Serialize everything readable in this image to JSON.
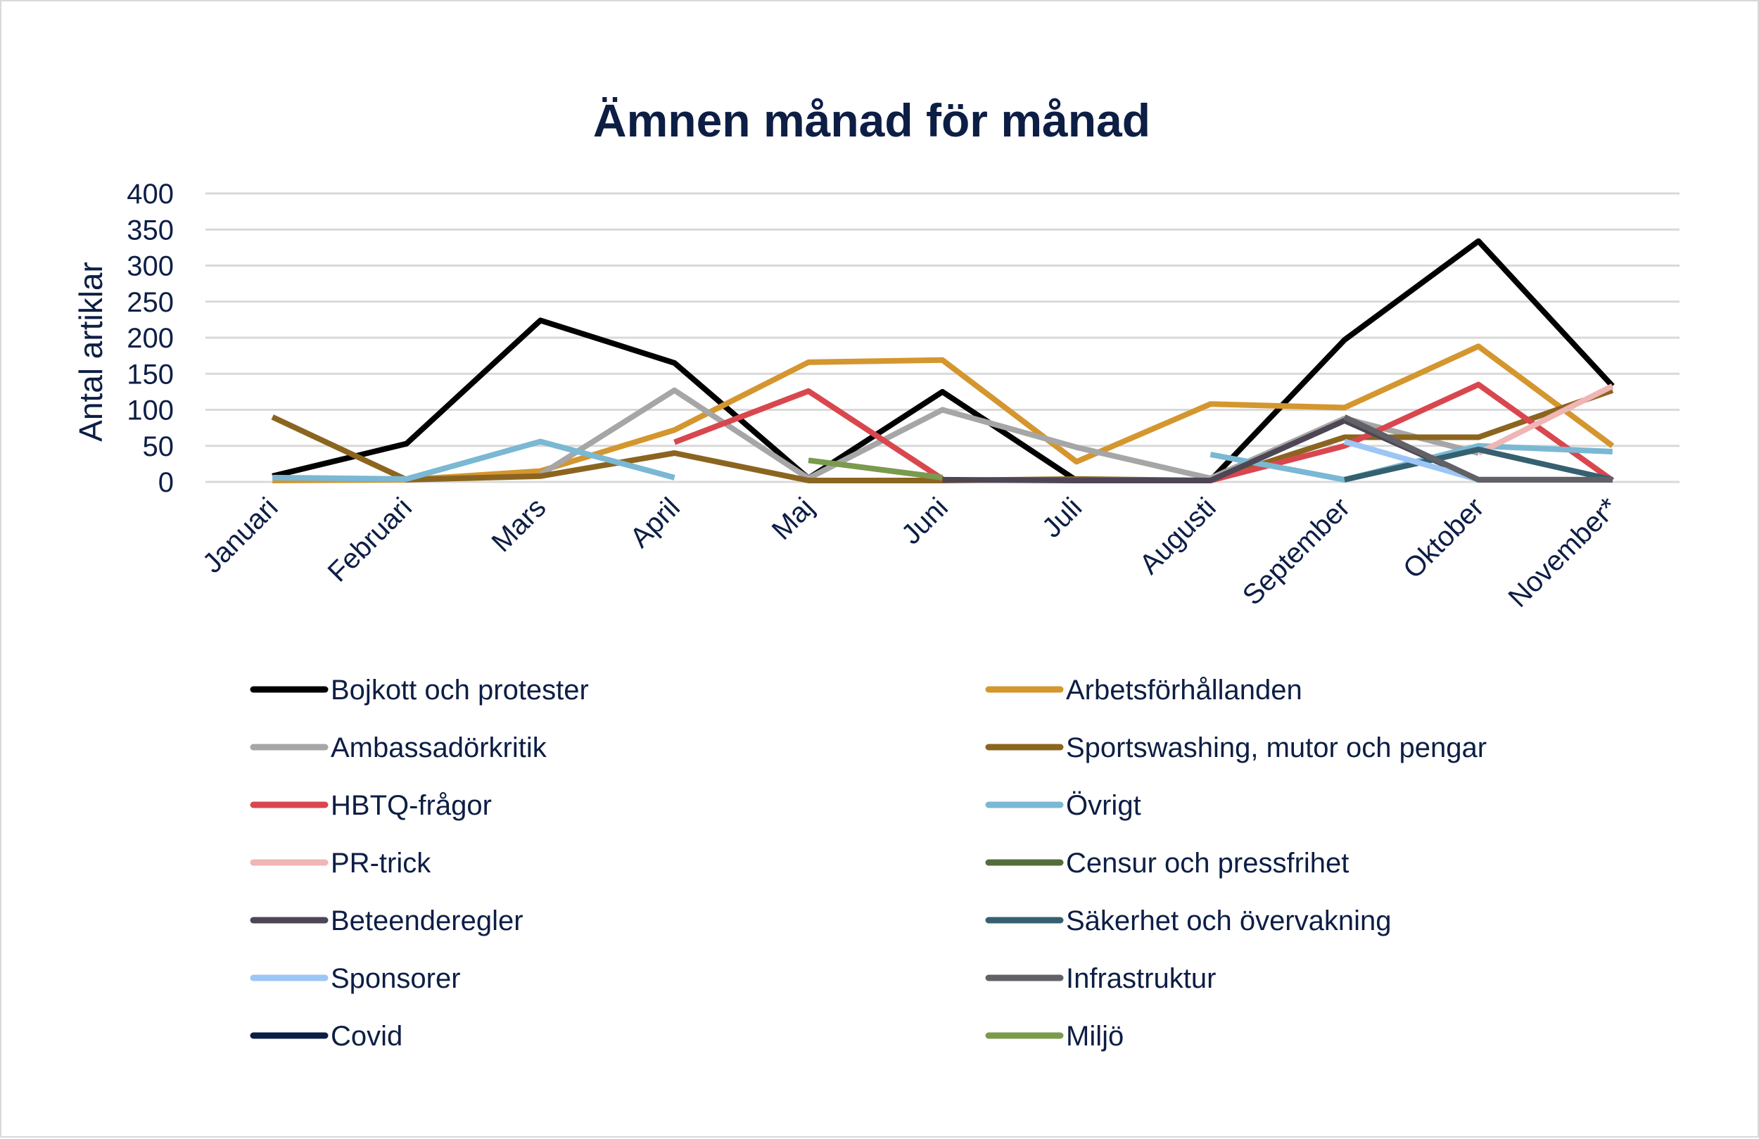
{
  "chart_data": {
    "type": "line",
    "title": "Ämnen månad för månad",
    "ylabel": "Antal artiklar",
    "xlabel": "",
    "ylim": [
      0,
      400
    ],
    "yticks": [
      0,
      50,
      100,
      150,
      200,
      250,
      300,
      350,
      400
    ],
    "grid": true,
    "legend_position": "bottom",
    "categories": [
      "Januari",
      "Februari",
      "Mars",
      "April",
      "Maj",
      "Juni",
      "Juli",
      "Augusti",
      "September",
      "Oktober",
      "November*"
    ],
    "series": [
      {
        "name": "Bojkott och protester",
        "color": "#000000",
        "values": [
          8,
          53,
          224,
          165,
          5,
          125,
          2,
          2,
          197,
          334,
          133
        ]
      },
      {
        "name": "Arbetsförhållanden",
        "color": "#d4962e",
        "values": [
          2,
          3,
          15,
          72,
          166,
          169,
          28,
          108,
          103,
          188,
          50
        ]
      },
      {
        "name": "Ambassadörkritik",
        "color": "#a6a6a6",
        "values": [
          null,
          null,
          10,
          127,
          5,
          100,
          48,
          5,
          88,
          40,
          null
        ]
      },
      {
        "name": "Sportswashing, mutor och pengar",
        "color": "#8b6520",
        "values": [
          90,
          3,
          8,
          40,
          2,
          2,
          4,
          2,
          62,
          62,
          127
        ]
      },
      {
        "name": "HBTQ-frågor",
        "color": "#d9474e",
        "values": [
          null,
          null,
          null,
          55,
          126,
          4,
          null,
          2,
          50,
          135,
          2
        ]
      },
      {
        "name": "Övrigt",
        "color": "#7ab8d3",
        "values": [
          6,
          4,
          56,
          6,
          null,
          null,
          null,
          38,
          3,
          50,
          42
        ]
      },
      {
        "name": "PR-trick",
        "color": "#f0b5b5",
        "values": [
          null,
          null,
          null,
          null,
          null,
          null,
          null,
          null,
          null,
          40,
          133
        ]
      },
      {
        "name": "Censur och pressfrihet",
        "color": "#546e3b",
        "values": [
          null,
          null,
          null,
          null,
          null,
          null,
          null,
          null,
          null,
          null,
          null
        ]
      },
      {
        "name": "Beteenderegler",
        "color": "#4e4655",
        "values": [
          null,
          null,
          null,
          null,
          null,
          3,
          2,
          2,
          85,
          3,
          3
        ]
      },
      {
        "name": "Säkerhet och övervakning",
        "color": "#356070",
        "values": [
          null,
          null,
          null,
          null,
          null,
          null,
          null,
          null,
          3,
          45,
          3
        ]
      },
      {
        "name": "Sponsorer",
        "color": "#9cc6f5",
        "values": [
          null,
          null,
          null,
          null,
          null,
          null,
          null,
          null,
          56,
          3,
          null
        ]
      },
      {
        "name": "Infrastruktur",
        "color": "#626168",
        "values": [
          null,
          null,
          null,
          null,
          null,
          null,
          null,
          null,
          90,
          3,
          3
        ]
      },
      {
        "name": "Covid",
        "color": "#0d1e45",
        "values": [
          null,
          null,
          null,
          null,
          null,
          null,
          null,
          null,
          null,
          null,
          null
        ]
      },
      {
        "name": "Miljö",
        "color": "#7a9a4d",
        "values": [
          null,
          null,
          null,
          null,
          30,
          6,
          null,
          null,
          null,
          null,
          null
        ]
      }
    ]
  }
}
